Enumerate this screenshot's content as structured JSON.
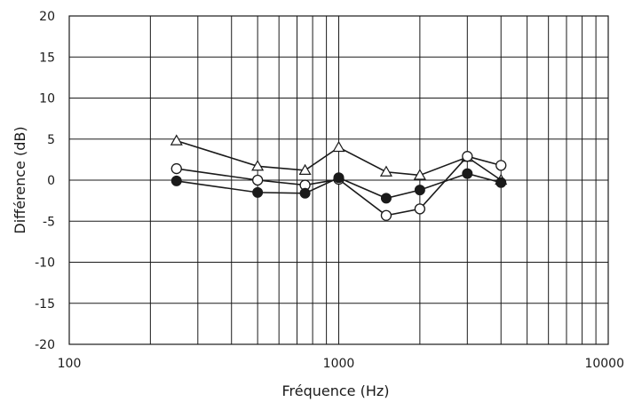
{
  "chart_data": {
    "type": "line",
    "title": "",
    "xlabel": "Fréquence (Hz)",
    "ylabel": "Différence (dB)",
    "xscale": "log",
    "xlim": [
      100,
      10000
    ],
    "ylim": [
      -20,
      20
    ],
    "x_ticks": [
      100,
      1000,
      10000
    ],
    "x_tick_labels": [
      "100",
      "1000",
      "10000"
    ],
    "y_ticks": [
      -20,
      -15,
      -10,
      -5,
      0,
      5,
      10,
      15,
      20
    ],
    "y_tick_labels": [
      "-20",
      "-15",
      "-10",
      "-5",
      "0",
      "5",
      "10",
      "15",
      "20"
    ],
    "grid": true,
    "legend": "none",
    "x": [
      250,
      500,
      750,
      1000,
      1500,
      2000,
      3000,
      4000
    ],
    "series": [
      {
        "marker": "open-triangle",
        "values": [
          4.8,
          1.7,
          1.2,
          4.0,
          1.0,
          0.6,
          2.8,
          0.0
        ]
      },
      {
        "marker": "open-circle",
        "values": [
          1.4,
          0.0,
          -0.6,
          0.1,
          -4.3,
          -3.5,
          2.9,
          1.8
        ]
      },
      {
        "marker": "filled-circle",
        "values": [
          -0.1,
          -1.5,
          -1.6,
          0.3,
          -2.2,
          -1.2,
          0.8,
          -0.3
        ]
      }
    ]
  }
}
